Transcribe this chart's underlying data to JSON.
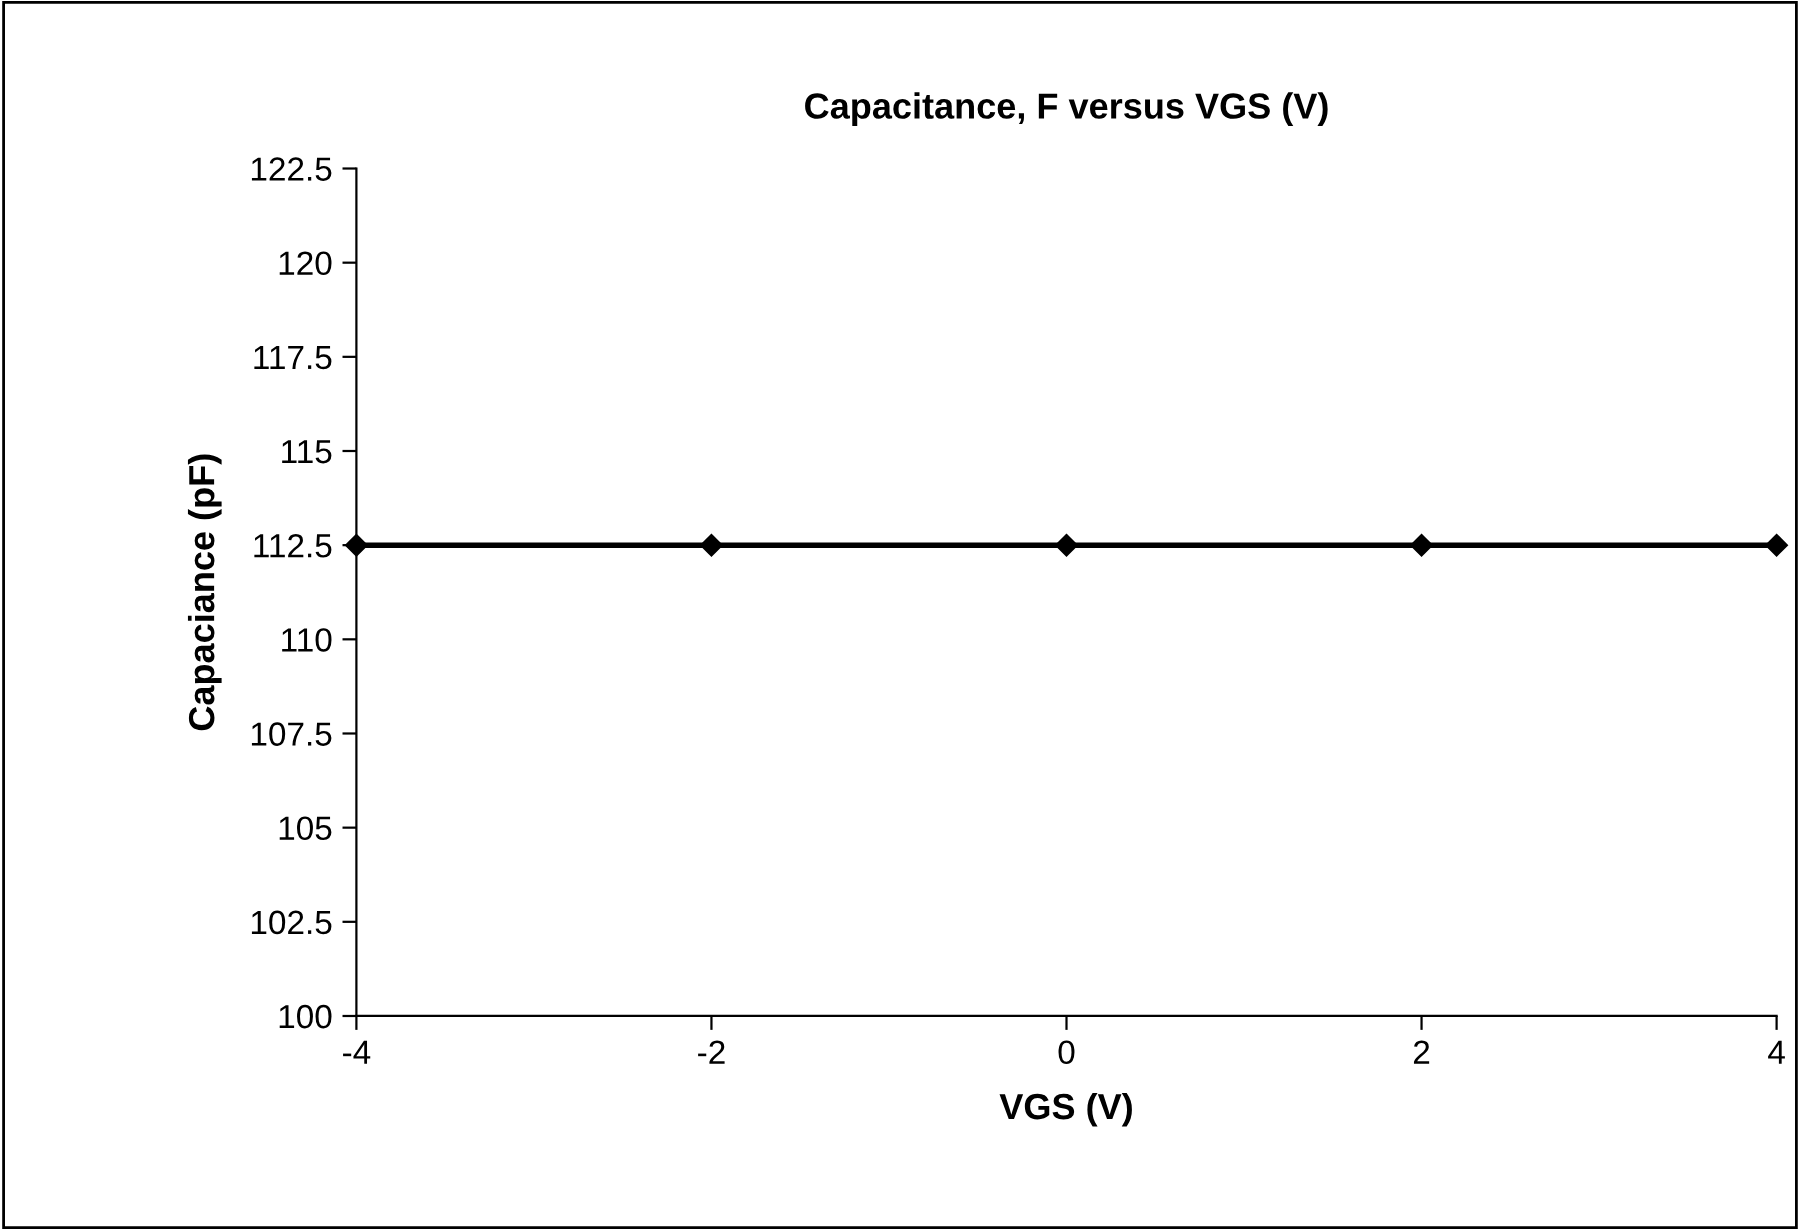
{
  "chart_data": {
    "type": "line",
    "title": "Capacitance, F versus VGS (V)",
    "xlabel": "VGS (V)",
    "ylabel": "Capaciance (pF)",
    "x": [
      -4,
      -2,
      0,
      2,
      4
    ],
    "series": [
      {
        "color": "#000000",
        "values": [
          112.5,
          112.5,
          112.5,
          112.5,
          112.5
        ]
      }
    ],
    "xlim": [
      -4,
      4
    ],
    "xticks": [
      -4,
      -2,
      0,
      2,
      4
    ],
    "ylim": [
      100,
      122.5
    ],
    "yticks": [
      100,
      102.5,
      105,
      107.5,
      110,
      112.5,
      115,
      117.5,
      120,
      122.5
    ],
    "marker": "diamond",
    "line_style": "solid"
  }
}
